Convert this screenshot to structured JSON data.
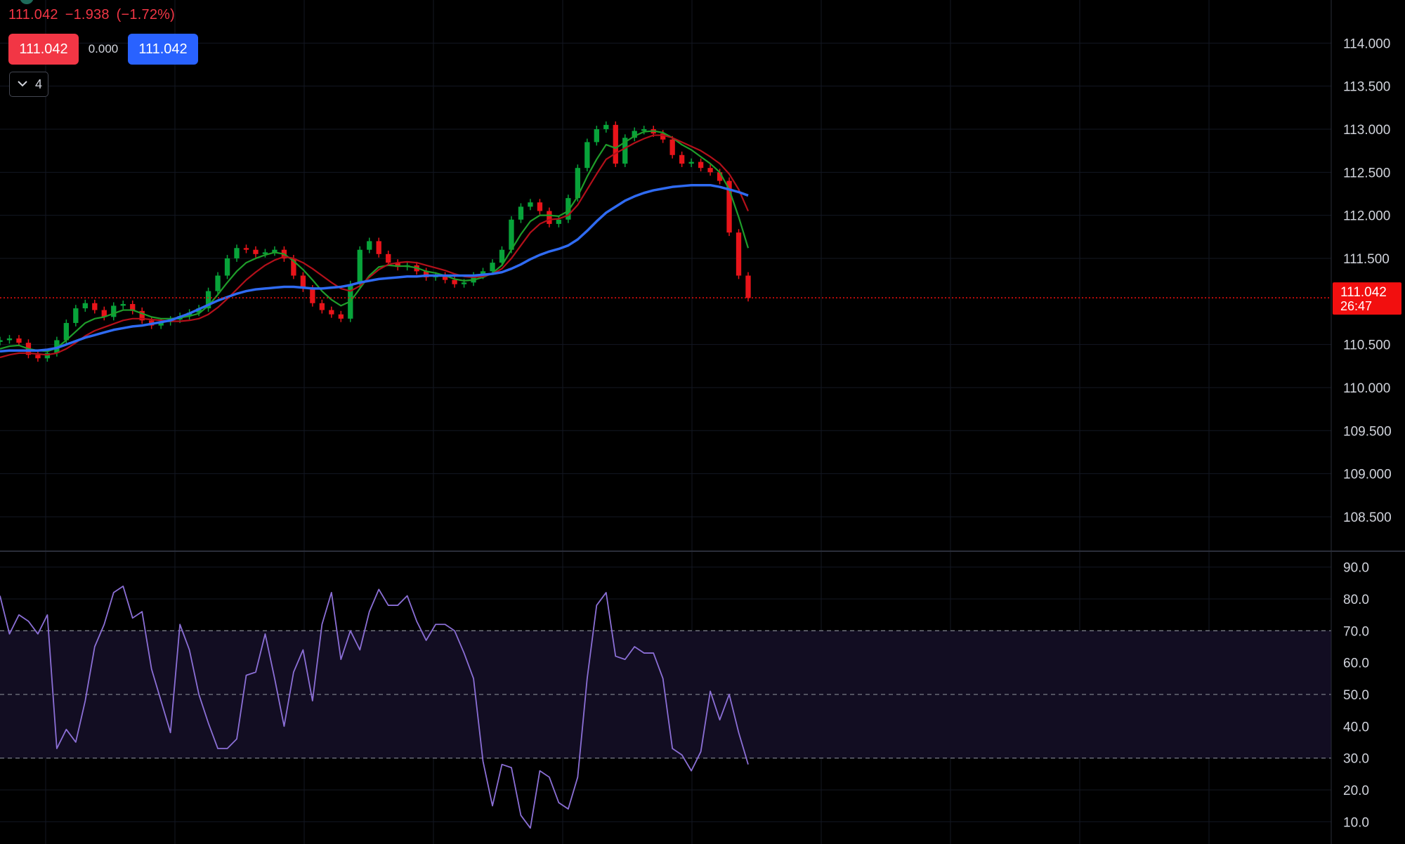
{
  "header": {
    "price": "111.042",
    "change": "−1.938",
    "change_pct": "(−1.72%)"
  },
  "trade": {
    "sell_price": "111.042",
    "spread": "0.000",
    "buy_price": "111.042"
  },
  "indicators_toggle": {
    "count": "4",
    "icon": "chevron-down-icon"
  },
  "colors": {
    "background": "#000000",
    "up": "#08a33a",
    "down": "#e8141a",
    "ma_blue": "#2f6bf2",
    "ma_green": "#1f9d2a",
    "ma_red": "#b3101a",
    "rsi": "#8b6fd6",
    "last_price_label": "#f20f0f"
  },
  "chart_data": [
    {
      "type": "line",
      "title": "",
      "price_axis_ticks": [
        "114.000",
        "113.500",
        "113.000",
        "112.500",
        "112.000",
        "111.500",
        "111.042",
        "110.500",
        "110.000",
        "109.500",
        "109.000",
        "108.500"
      ],
      "ylim": [
        108.1,
        114.5
      ],
      "last_price": 111.042,
      "last_price_label": "111.042",
      "countdown": "26:47",
      "series": [
        {
          "name": "",
          "role": "close",
          "values": [
            110.55,
            110.57,
            110.52,
            110.38,
            110.34,
            110.4,
            110.55,
            110.75,
            110.92,
            110.98,
            110.9,
            110.82,
            110.95,
            110.97,
            110.89,
            110.78,
            110.72,
            110.76,
            110.79,
            110.83,
            110.87,
            110.92,
            111.12,
            111.3,
            111.5,
            111.62,
            111.6,
            111.55,
            111.57,
            111.6,
            111.5,
            111.3,
            111.15,
            110.98,
            110.9,
            110.85,
            110.8,
            111.2,
            111.6,
            111.7,
            111.55,
            111.45,
            111.4,
            111.42,
            111.35,
            111.28,
            111.3,
            111.25,
            111.2,
            111.22,
            111.3,
            111.35,
            111.45,
            111.6,
            111.95,
            112.1,
            112.15,
            112.05,
            111.9,
            111.95,
            112.2,
            112.55,
            112.85,
            113.0,
            113.05,
            112.6,
            112.9,
            112.98,
            113.0,
            112.95,
            112.88,
            112.7,
            112.6,
            112.62,
            112.55,
            112.5,
            112.4,
            111.8,
            111.3,
            111.04
          ]
        },
        {
          "name": "",
          "role": "ma_green",
          "values": [
            110.45,
            110.48,
            110.49,
            110.45,
            110.43,
            110.42,
            110.46,
            110.55,
            110.65,
            110.75,
            110.8,
            110.82,
            110.86,
            110.9,
            110.9,
            110.86,
            110.82,
            110.8,
            110.8,
            110.81,
            110.83,
            110.86,
            110.95,
            111.08,
            111.22,
            111.35,
            111.45,
            111.5,
            111.54,
            111.57,
            111.55,
            111.47,
            111.37,
            111.25,
            111.12,
            111.02,
            110.95,
            111.0,
            111.15,
            111.3,
            111.4,
            111.42,
            111.41,
            111.41,
            111.39,
            111.35,
            111.33,
            111.3,
            111.26,
            111.24,
            111.25,
            111.28,
            111.33,
            111.42,
            111.6,
            111.78,
            111.93,
            112.0,
            112.0,
            111.99,
            112.05,
            112.22,
            112.45,
            112.65,
            112.82,
            112.78,
            112.85,
            112.92,
            112.97,
            112.98,
            112.96,
            112.9,
            112.82,
            112.76,
            112.68,
            112.6,
            112.5,
            112.3,
            111.98,
            111.62
          ]
        },
        {
          "name": "",
          "role": "ma_red",
          "values": [
            110.35,
            110.38,
            110.4,
            110.4,
            110.39,
            110.38,
            110.4,
            110.45,
            110.52,
            110.6,
            110.66,
            110.7,
            110.74,
            110.78,
            110.8,
            110.8,
            110.79,
            110.78,
            110.77,
            110.77,
            110.78,
            110.8,
            110.85,
            110.93,
            111.03,
            111.14,
            111.25,
            111.34,
            111.42,
            111.48,
            111.52,
            111.5,
            111.45,
            111.38,
            111.3,
            111.22,
            111.15,
            111.12,
            111.18,
            111.28,
            111.37,
            111.43,
            111.45,
            111.46,
            111.45,
            111.42,
            111.39,
            111.36,
            111.32,
            111.29,
            111.28,
            111.29,
            111.32,
            111.38,
            111.5,
            111.65,
            111.8,
            111.9,
            111.95,
            111.96,
            112.0,
            112.12,
            112.3,
            112.48,
            112.65,
            112.72,
            112.78,
            112.84,
            112.89,
            112.93,
            112.93,
            112.9,
            112.85,
            112.8,
            112.75,
            112.68,
            112.6,
            112.48,
            112.3,
            112.05
          ]
        },
        {
          "name": "",
          "role": "ma_blue",
          "values": [
            110.42,
            110.43,
            110.43,
            110.43,
            110.43,
            110.44,
            110.46,
            110.5,
            110.54,
            110.58,
            110.61,
            110.64,
            110.67,
            110.69,
            110.71,
            110.72,
            110.74,
            110.76,
            110.78,
            110.82,
            110.86,
            110.91,
            110.96,
            111.01,
            111.05,
            111.09,
            111.12,
            111.14,
            111.15,
            111.16,
            111.17,
            111.17,
            111.16,
            111.15,
            111.15,
            111.16,
            111.17,
            111.19,
            111.22,
            111.24,
            111.26,
            111.27,
            111.28,
            111.29,
            111.29,
            111.3,
            111.3,
            111.3,
            111.3,
            111.3,
            111.3,
            111.31,
            111.32,
            111.34,
            111.38,
            111.43,
            111.49,
            111.54,
            111.58,
            111.61,
            111.65,
            111.72,
            111.82,
            111.93,
            112.03,
            112.1,
            112.17,
            112.22,
            112.26,
            112.29,
            112.31,
            112.33,
            112.34,
            112.35,
            112.35,
            112.35,
            112.33,
            112.3,
            112.27,
            112.23
          ]
        }
      ]
    },
    {
      "type": "line",
      "title": "",
      "y_ticks": [
        "90.0",
        "80.0",
        "70.0",
        "60.0",
        "50.0",
        "40.0",
        "30.0",
        "20.0",
        "10.0"
      ],
      "ylim": [
        3,
        95
      ],
      "bands": [
        30,
        50,
        70
      ],
      "series": [
        {
          "name": "",
          "values": [
            81,
            69,
            75,
            73,
            69,
            75,
            33,
            39,
            35,
            48,
            65,
            72,
            82,
            84,
            74,
            76,
            58,
            48,
            38,
            72,
            64,
            50,
            41,
            33,
            33,
            36,
            56,
            57,
            69,
            55,
            40,
            57,
            64,
            48,
            72,
            82,
            61,
            70,
            64,
            76,
            83,
            78,
            78,
            81,
            73,
            67,
            72,
            72,
            70,
            63,
            55,
            29,
            15,
            28,
            27,
            12,
            8,
            26,
            24,
            16,
            14,
            24,
            55,
            78,
            82,
            62,
            61,
            65,
            63,
            63,
            55,
            33,
            31,
            26,
            32,
            51,
            42,
            50,
            38,
            28
          ]
        }
      ]
    }
  ]
}
